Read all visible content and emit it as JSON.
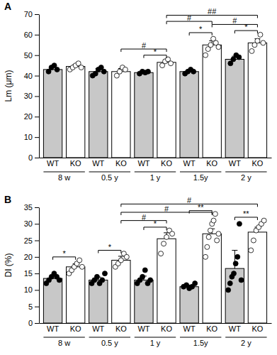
{
  "chart_data": [
    {
      "type": "bar",
      "title": "A",
      "y_label": "Lm (μm)",
      "categories": [
        "WT",
        "KO",
        "WT",
        "KO",
        "WT",
        "KO",
        "WT",
        "KO",
        "WT",
        "KO"
      ],
      "groups": [
        {
          "label": "8 w",
          "from": 0,
          "to": 1
        },
        {
          "label": "0.5 y",
          "from": 2,
          "to": 3
        },
        {
          "label": "1 y",
          "from": 4,
          "to": 5
        },
        {
          "label": "1.5y",
          "from": 6,
          "to": 7
        },
        {
          "label": "2 y",
          "from": 8,
          "to": 9
        }
      ],
      "values": [
        43,
        44.5,
        42,
        42,
        41.5,
        46.5,
        42,
        55,
        48,
        56
      ],
      "errors": [
        1.2,
        1.0,
        1.5,
        1.5,
        0.8,
        1.5,
        0.8,
        2.0,
        1.5,
        2.0
      ],
      "points": [
        [
          42,
          44,
          45,
          43
        ],
        [
          43,
          44,
          45,
          46,
          44
        ],
        [
          40,
          41,
          43,
          44,
          42
        ],
        [
          40,
          42,
          44,
          43
        ],
        [
          41,
          42,
          41.5,
          42
        ],
        [
          45,
          47,
          48,
          46
        ],
        [
          41,
          42,
          43,
          42
        ],
        [
          50,
          53,
          55,
          58,
          56,
          54
        ],
        [
          46,
          48,
          50,
          49
        ],
        [
          52,
          55,
          57,
          60,
          56
        ]
      ],
      "colors": [
        "#c8c8c8",
        "#ffffff",
        "#c8c8c8",
        "#ffffff",
        "#c8c8c8",
        "#ffffff",
        "#c8c8c8",
        "#ffffff",
        "#c8c8c8",
        "#ffffff"
      ],
      "ylim": [
        0,
        70
      ],
      "yticks": [
        0,
        10,
        20,
        30,
        40,
        50,
        60,
        70
      ],
      "annotations": [
        {
          "label": "*",
          "from": 4,
          "to": 5,
          "y": 50
        },
        {
          "label": "*",
          "from": 6,
          "to": 7,
          "y": 61
        },
        {
          "label": "*",
          "from": 8,
          "to": 9,
          "y": 62
        },
        {
          "label": "#",
          "from": 3,
          "to": 5,
          "y": 53
        },
        {
          "label": "#",
          "from": 7,
          "to": 9,
          "y": 65
        },
        {
          "label": "#",
          "from": 5,
          "to": 7,
          "y": 66.5
        },
        {
          "label": "##",
          "from": 5,
          "to": 9,
          "y": 69.5
        }
      ]
    },
    {
      "type": "bar",
      "title": "B",
      "y_label": "DI (%)",
      "categories": [
        "WT",
        "KO",
        "WT",
        "KO",
        "WT",
        "KO",
        "WT",
        "KO",
        "WT",
        "KO"
      ],
      "groups": [
        {
          "label": "8 w",
          "from": 0,
          "to": 1
        },
        {
          "label": "0.5 y",
          "from": 2,
          "to": 3
        },
        {
          "label": "1 y",
          "from": 4,
          "to": 5
        },
        {
          "label": "1.5y",
          "from": 6,
          "to": 7
        },
        {
          "label": "2 y",
          "from": 8,
          "to": 9
        }
      ],
      "values": [
        13.5,
        17,
        13,
        19,
        13,
        25.5,
        11,
        27,
        16.5,
        27.5
      ],
      "errors": [
        0.8,
        0.9,
        0.9,
        1.2,
        1.2,
        1.8,
        0.5,
        1.5,
        5.5,
        1.5
      ],
      "points": [
        [
          12,
          13,
          14,
          15,
          14,
          13
        ],
        [
          15,
          16,
          17,
          18,
          19,
          17
        ],
        [
          12,
          13,
          14,
          12,
          13,
          15
        ],
        [
          17,
          18,
          19,
          21,
          20
        ],
        [
          12,
          13,
          14,
          16,
          12,
          13
        ],
        [
          21,
          24,
          26,
          28,
          27
        ],
        [
          11,
          11.5,
          10.5,
          11,
          12
        ],
        [
          20,
          23,
          26,
          28,
          30,
          31,
          33,
          25,
          27
        ],
        [
          10,
          12,
          14,
          15,
          18,
          20,
          30,
          13
        ],
        [
          22,
          25,
          28,
          29,
          30,
          31
        ]
      ],
      "colors": [
        "#c8c8c8",
        "#ffffff",
        "#c8c8c8",
        "#ffffff",
        "#c8c8c8",
        "#ffffff",
        "#c8c8c8",
        "#ffffff",
        "#c8c8c8",
        "#ffffff"
      ],
      "ylim": [
        0,
        35
      ],
      "yticks": [
        0,
        5,
        10,
        15,
        20,
        25,
        30,
        35
      ],
      "annotations": [
        {
          "label": "*",
          "from": 0,
          "to": 1,
          "y": 20
        },
        {
          "label": "*",
          "from": 2,
          "to": 3,
          "y": 22
        },
        {
          "label": "*",
          "from": 4,
          "to": 5,
          "y": 29
        },
        {
          "label": "**",
          "from": 6,
          "to": 7,
          "y": 34
        },
        {
          "label": "**",
          "from": 8,
          "to": 9,
          "y": 32
        },
        {
          "label": "#",
          "from": 3,
          "to": 5,
          "y": 31
        },
        {
          "label": "#",
          "from": 3,
          "to": 7,
          "y": 33.5
        },
        {
          "label": "#",
          "from": 3,
          "to": 9,
          "y": 36
        }
      ]
    }
  ]
}
